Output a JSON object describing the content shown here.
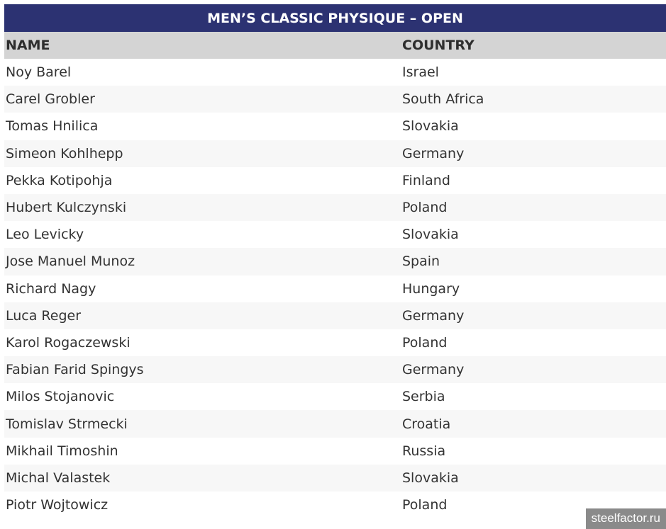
{
  "title": "MEN’S CLASSIC PHYSIQUE – OPEN",
  "columns": {
    "name": "NAME",
    "country": "COUNTRY"
  },
  "rows": [
    {
      "name": "Noy Barel",
      "country": "Israel"
    },
    {
      "name": "Carel Grobler",
      "country": "South Africa"
    },
    {
      "name": "Tomas Hnilica",
      "country": "Slovakia"
    },
    {
      "name": "Simeon Kohlhepp",
      "country": "Germany"
    },
    {
      "name": "Pekka Kotipohja",
      "country": "Finland"
    },
    {
      "name": "Hubert Kulczynski",
      "country": "Poland"
    },
    {
      "name": "Leo Levicky",
      "country": "Slovakia"
    },
    {
      "name": "Jose Manuel Munoz",
      "country": "Spain"
    },
    {
      "name": "Richard Nagy",
      "country": "Hungary"
    },
    {
      "name": "Luca Reger",
      "country": "Germany"
    },
    {
      "name": "Karol Rogaczewski",
      "country": "Poland"
    },
    {
      "name": "Fabian Farid Spingys",
      "country": "Germany"
    },
    {
      "name": "Milos Stojanovic",
      "country": "Serbia"
    },
    {
      "name": "Tomislav Strmecki",
      "country": "Croatia"
    },
    {
      "name": "Mikhail Timoshin",
      "country": "Russia"
    },
    {
      "name": "Michal Valastek",
      "country": "Slovakia"
    },
    {
      "name": "Piotr Wojtowicz",
      "country": "Poland"
    }
  ],
  "watermark": "steelfactor.ru",
  "colors": {
    "title_bg": "#2c3272",
    "header_bg": "#d4d4d4",
    "alt_row": "#f7f7f7"
  }
}
